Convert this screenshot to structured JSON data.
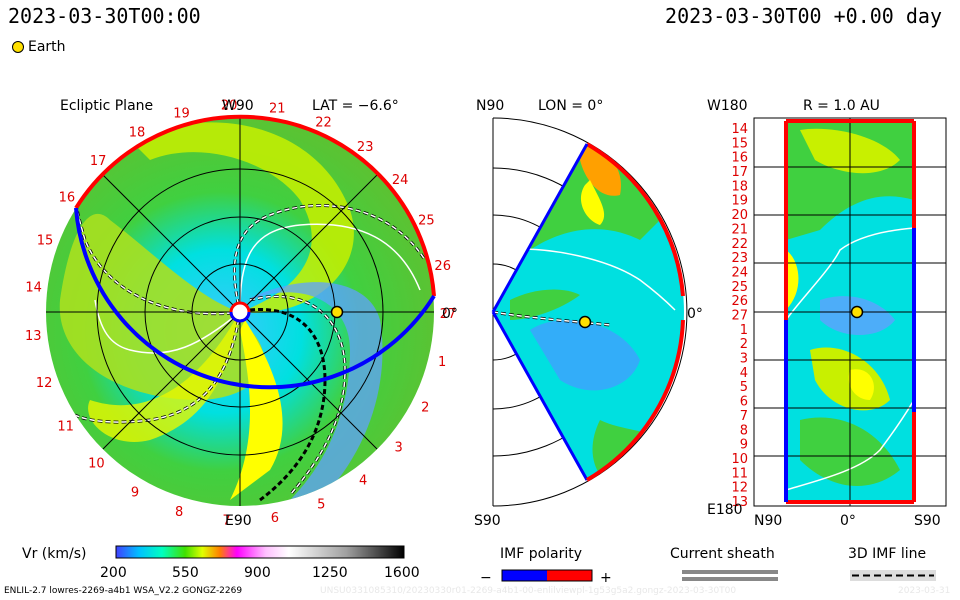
{
  "header": {
    "datetime_left": "2023-03-30T00:00",
    "datetime_right": "2023-03-30T00 +0.00 day",
    "legend_body": "Earth"
  },
  "colors": {
    "earth": "#ffe000",
    "imf_negative": "#0000ff",
    "imf_positive": "#ff0000",
    "sheath": "#888888"
  },
  "panel_ecliptic": {
    "title": "Ecliptic Plane",
    "top_label": "W90",
    "lat_label": "LAT = −6.6°",
    "bottom_label": "E90",
    "right_label": "0°",
    "carrington_ticks": [
      "20",
      "21",
      "22",
      "23",
      "24",
      "25",
      "26",
      "27",
      "1",
      "2",
      "3",
      "4",
      "5",
      "6",
      "7",
      "8",
      "9",
      "10",
      "11",
      "12",
      "13",
      "14",
      "15",
      "16",
      "17",
      "18",
      "19"
    ]
  },
  "panel_meridional": {
    "top_label": "N90",
    "lon_label": "LON = 0°",
    "bottom_label": "S90",
    "right_label": "0°"
  },
  "panel_radial": {
    "top_left_label": "W180",
    "r_label": "R = 1.0 AU",
    "bottom_left_label": "E180",
    "x_labels": [
      "N90",
      "0°",
      "S90"
    ],
    "y_labels": [
      "14",
      "15",
      "16",
      "17",
      "18",
      "19",
      "20",
      "21",
      "22",
      "23",
      "24",
      "25",
      "26",
      "27",
      "1",
      "2",
      "3",
      "4",
      "5",
      "6",
      "7",
      "8",
      "9",
      "10",
      "11",
      "12",
      "13"
    ]
  },
  "colorbar": {
    "label": "Vr (km/s)",
    "ticks": [
      "200",
      "550",
      "900",
      "1250",
      "1600"
    ]
  },
  "imf_legend": {
    "title": "IMF polarity",
    "minus": "−",
    "plus": "+"
  },
  "sheath_legend": {
    "title": "Current sheath"
  },
  "imf_line_legend": {
    "title": "3D IMF line"
  },
  "footer": {
    "model_info": "ENLIL-2.7 lowres-2269-a4b1 WSA_V2.2 GONGZ-2269",
    "file_info": "UNSU0331085310/20230330r01-2269-a4b1-00-enlilviewpl-1g53g5a2.gongz-2023-03-30T00",
    "date_stamp": "2023-03-31"
  }
}
